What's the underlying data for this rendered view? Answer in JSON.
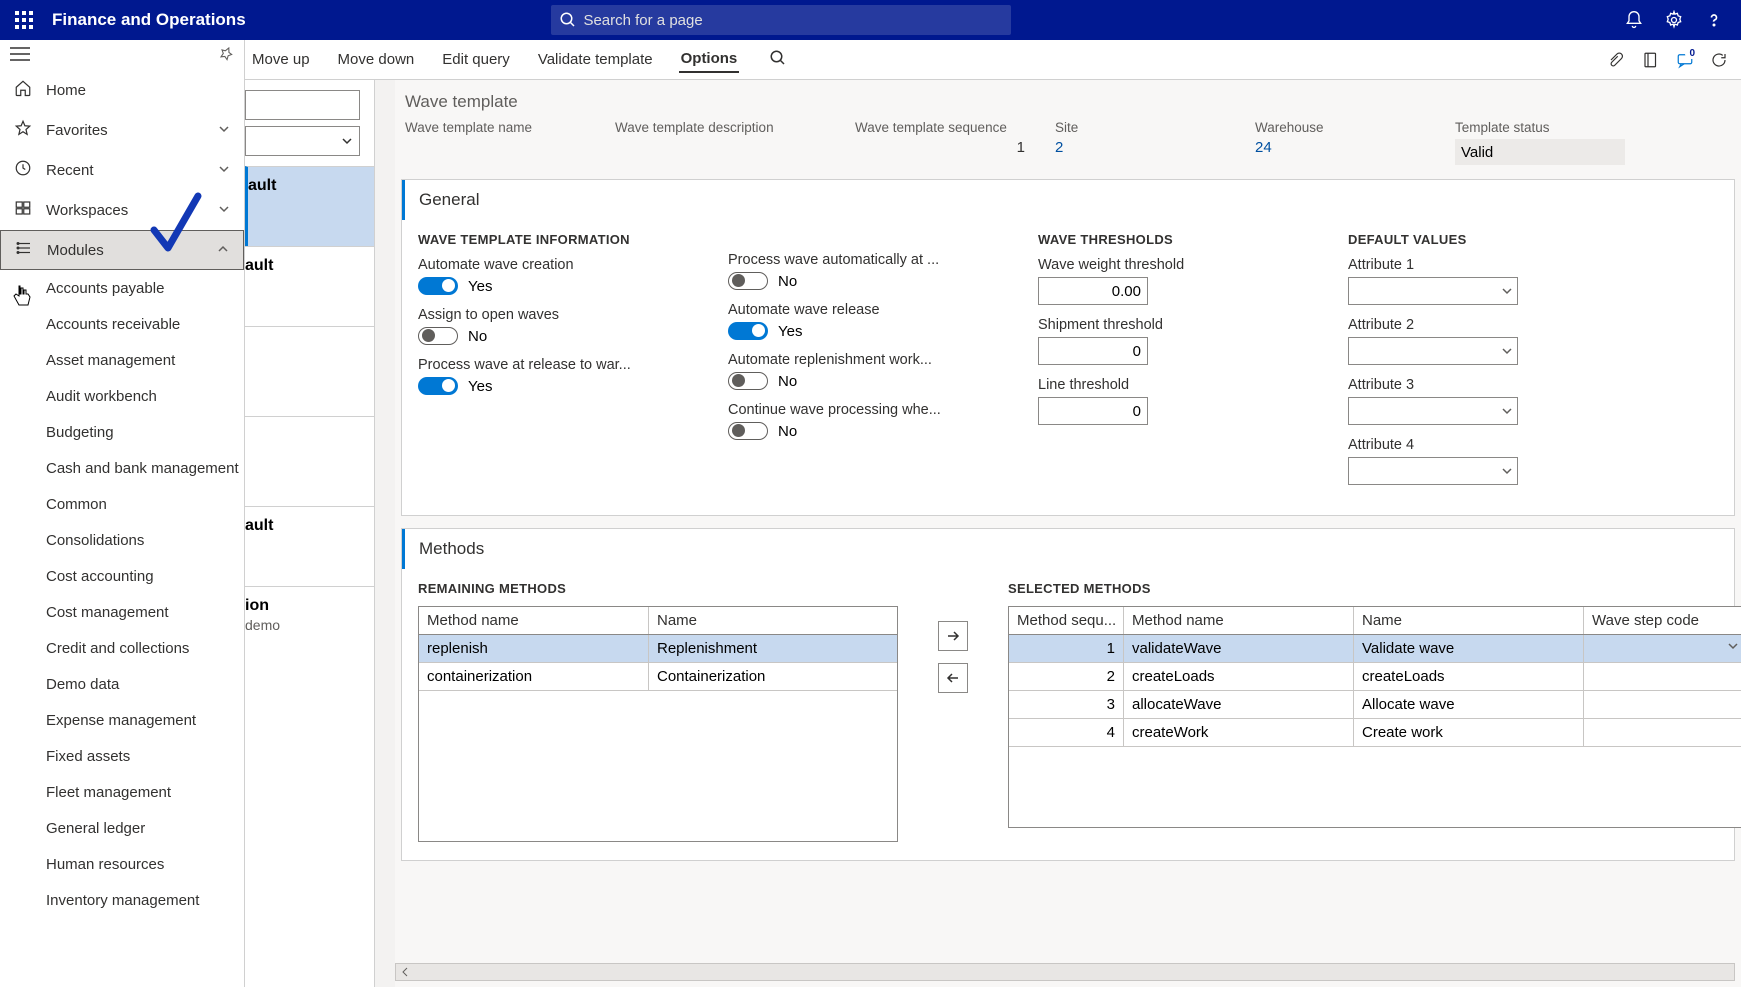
{
  "app": {
    "title": "Finance and Operations",
    "search_placeholder": "Search for a page"
  },
  "cmdbar": {
    "items": [
      "Move up",
      "Move down",
      "Edit query",
      "Validate template",
      "Options"
    ],
    "active_index": 4
  },
  "leftnav": {
    "top": [
      {
        "label": "Home",
        "icon": "home"
      },
      {
        "label": "Favorites",
        "icon": "star",
        "expandable": true
      },
      {
        "label": "Recent",
        "icon": "clock",
        "expandable": true
      },
      {
        "label": "Workspaces",
        "icon": "workspace",
        "expandable": true
      },
      {
        "label": "Modules",
        "icon": "modules",
        "expandable": true,
        "selected": true,
        "expanded": true
      }
    ],
    "modules": [
      "Accounts payable",
      "Accounts receivable",
      "Asset management",
      "Audit workbench",
      "Budgeting",
      "Cash and bank management",
      "Common",
      "Consolidations",
      "Cost accounting",
      "Cost management",
      "Credit and collections",
      "Demo data",
      "Expense management",
      "Fixed assets",
      "Fleet management",
      "General ledger",
      "Human resources",
      "Inventory management"
    ]
  },
  "midlist": {
    "cards": [
      {
        "title": "ault",
        "selected": true
      },
      {
        "title": "ault"
      },
      {
        "title": ""
      },
      {
        "title": ""
      },
      {
        "title": "ault"
      },
      {
        "title": "ion",
        "sub": "demo"
      }
    ]
  },
  "header": {
    "section": "Wave template",
    "cols": [
      {
        "label": "Wave template name",
        "value": ""
      },
      {
        "label": "Wave template description",
        "value": ""
      },
      {
        "label": "Wave template sequence",
        "value": "1",
        "align": "right"
      },
      {
        "label": "Site",
        "value": "2",
        "link": true
      },
      {
        "label": "Warehouse",
        "value": "24",
        "link": true
      },
      {
        "label": "Template status",
        "value": "Valid",
        "readonly": true
      }
    ]
  },
  "general": {
    "title": "General",
    "wave_info_title": "WAVE TEMPLATE INFORMATION",
    "thresholds_title": "WAVE THRESHOLDS",
    "defaults_title": "DEFAULT VALUES",
    "col1": [
      {
        "label": "Automate wave creation",
        "on": true,
        "text": "Yes"
      },
      {
        "label": "Assign to open waves",
        "on": false,
        "text": "No"
      },
      {
        "label": "Process wave at release to war...",
        "on": true,
        "text": "Yes"
      }
    ],
    "col2": [
      {
        "label": "Process wave automatically at ...",
        "on": false,
        "text": "No"
      },
      {
        "label": "Automate wave release",
        "on": true,
        "text": "Yes"
      },
      {
        "label": "Automate replenishment work...",
        "on": false,
        "text": "No"
      },
      {
        "label": "Continue wave processing whe...",
        "on": false,
        "text": "No"
      }
    ],
    "thresholds": [
      {
        "label": "Wave weight threshold",
        "value": "0.00"
      },
      {
        "label": "Shipment threshold",
        "value": "0"
      },
      {
        "label": "Line threshold",
        "value": "0"
      }
    ],
    "defaults": [
      {
        "label": "Attribute 1"
      },
      {
        "label": "Attribute 2"
      },
      {
        "label": "Attribute 3"
      },
      {
        "label": "Attribute 4"
      }
    ]
  },
  "methods": {
    "title": "Methods",
    "remaining_title": "REMAINING METHODS",
    "selected_title": "SELECTED METHODS",
    "remaining_cols": [
      "Method name",
      "Name"
    ],
    "remaining_rows": [
      {
        "method": "replenish",
        "name": "Replenishment",
        "selected": true
      },
      {
        "method": "containerization",
        "name": "Containerization"
      }
    ],
    "selected_cols": [
      "Method sequ...",
      "Method name",
      "Name",
      "Wave step code"
    ],
    "selected_rows": [
      {
        "seq": "1",
        "method": "validateWave",
        "name": "Validate wave",
        "code": "",
        "selected": true
      },
      {
        "seq": "2",
        "method": "createLoads",
        "name": "createLoads",
        "code": ""
      },
      {
        "seq": "3",
        "method": "allocateWave",
        "name": "Allocate wave",
        "code": ""
      },
      {
        "seq": "4",
        "method": "createWork",
        "name": "Create work",
        "code": ""
      }
    ]
  },
  "notification_badge": "0"
}
